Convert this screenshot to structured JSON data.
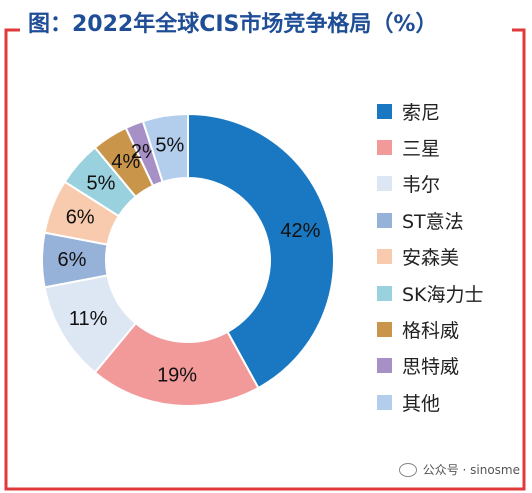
{
  "title": "图：2022年全球CIS市场竞争格局（%）",
  "watermark": "公众号 · sinosme",
  "colors": {
    "frame": "#E03A3A",
    "title": "#1F4E96"
  },
  "chart_data": {
    "type": "pie",
    "donut": true,
    "legend_position": "right",
    "series": [
      {
        "name": "索尼",
        "value": 42,
        "label": "42%",
        "color": "#1A78C2"
      },
      {
        "name": "三星",
        "value": 19,
        "label": "19%",
        "color": "#F2999A"
      },
      {
        "name": "韦尔",
        "value": 11,
        "label": "11%",
        "color": "#DDE6F3"
      },
      {
        "name": "ST意法",
        "value": 6,
        "label": "6%",
        "color": "#97B2D8"
      },
      {
        "name": "安森美",
        "value": 6,
        "label": "6%",
        "color": "#F8CAAE"
      },
      {
        "name": "SK海力士",
        "value": 5,
        "label": "5%",
        "color": "#9AD1DE"
      },
      {
        "name": "格科威",
        "value": 4,
        "label": "4%",
        "color": "#C9954A"
      },
      {
        "name": "思特威",
        "value": 2,
        "label": "2%",
        "color": "#A690C6"
      },
      {
        "name": "其他",
        "value": 5,
        "label": "5%",
        "color": "#B3CDEC"
      }
    ]
  }
}
